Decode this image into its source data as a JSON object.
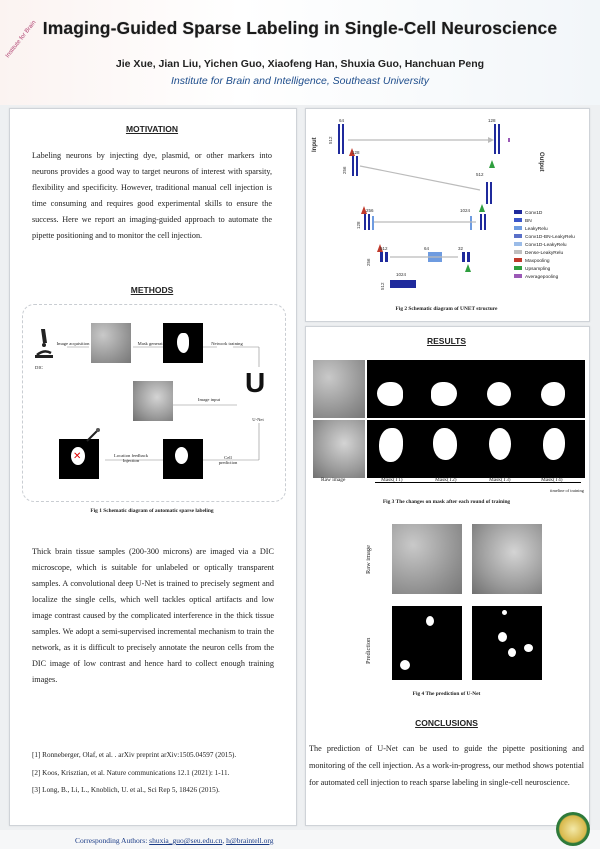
{
  "header": {
    "title": "Imaging-Guided Sparse Labeling in Single-Cell Neuroscience",
    "authors": "Jie Xue, Jian Liu, Yichen Guo, Xiaofeng Han, Shuxia Guo, Hanchuan Peng",
    "affiliation": "Institute for Brain and Intelligence, Southeast University"
  },
  "motivation": {
    "heading": "MOTIVATION",
    "text": "Labeling neurons by injecting dye, plasmid, or other markers into neurons provides a good way to target neurons of interest with sparsity, flexibility and specificity. However, traditional manual cell injection is time consuming and requires good experimental skills to ensure the success. Here we report an imaging-guided approach to automate the pipette positioning and to monitor the cell injection."
  },
  "methods": {
    "heading": "METHODS",
    "labels": {
      "image_acquisition": "Image acquisition",
      "mask_generation": "Mask generation",
      "network_training": "Network training",
      "dic": "DIC",
      "image_input": "Image input",
      "unet_symbol": "U",
      "unet": "U-Net",
      "location_feedback": "Location feedback Injection",
      "cell_prediction": "Cell prediction"
    },
    "fig1_caption": "Fig 1    Schematic diagram of automatic sparse labeling",
    "text": "Thick brain tissue samples (200-300 microns) are imaged via a DIC microscope, which is suitable for unlabeled or optically transparent samples. A convolutional deep U-Net is trained to precisely segment and localize the single cells, which well tackles optical artifacts and low image contrast caused by the complicated interference in the thick tissue samples. We adopt a semi-supervised incremental mechanism to train the network, as it is difficult to precisely annotate the neuron cells from the DIC image of low contrast and hence hard to collect enough training images."
  },
  "unet_diagram": {
    "input_label": "Input",
    "output_label": "Output",
    "numbers": [
      "64",
      "512",
      "128",
      "256",
      "256",
      "128",
      "512",
      "256",
      "64",
      "512",
      "1024",
      "32",
      "1024",
      "512",
      "128",
      "64",
      "128",
      "256",
      "512"
    ],
    "legend": [
      "Conv1D",
      "BN",
      "LeakyRelu",
      "Conv1D-BN-LeakyRelu",
      "Conv1D-LeakyRelu",
      "Dense-LeakyRelu",
      "Maxpooling",
      "Upsampling",
      "Averagepooling"
    ],
    "legend_colors": [
      "#1f2a9c",
      "#3a55c8",
      "#6e9be0",
      "#5a70c8",
      "#9bbce8",
      "#bfbfbf",
      "#c0392b",
      "#2e9e3e",
      "#9b59b6"
    ],
    "caption": "Fig 2    Schematic diagram of UNET structure"
  },
  "results": {
    "heading": "RESULTS",
    "fig3_labels": [
      "Raw image",
      "Mask(T1)",
      "Mask(T2)",
      "Mask(T3)",
      "Mask(T4)"
    ],
    "timeline": "timeline of training",
    "fig3_caption": "Fig 3    The changes on mask after each round of training",
    "row_labels": [
      "Raw image",
      "Prediction"
    ],
    "fig4_caption": "Fig 4    The prediction of U-Net"
  },
  "references": [
    "[1] Ronneberger, Olaf, et al. . arXiv preprint arXiv:1505.04597 (2015).",
    "[2] Koos, Krisztian, et al. Nature communications 12.1 (2021): 1-11.",
    "[3] Long, B., Li, L., Knoblich, U. et al., Sci Rep 5, 18426 (2015)."
  ],
  "conclusions": {
    "heading": "CONCLUSIONS",
    "text": "The prediction of U-Net can be used to guide the pipette positioning and monitoring of the cell injection. As a work-in-progress, our method shows potential for automated cell injection to reach sparse labeling in single-cell neuroscience."
  },
  "footer": {
    "prefix": "Corresponding Authors: ",
    "email1": "shuxia_guo@seu.edu.cn",
    "sep": ", ",
    "email2": "h@braintell.org"
  }
}
